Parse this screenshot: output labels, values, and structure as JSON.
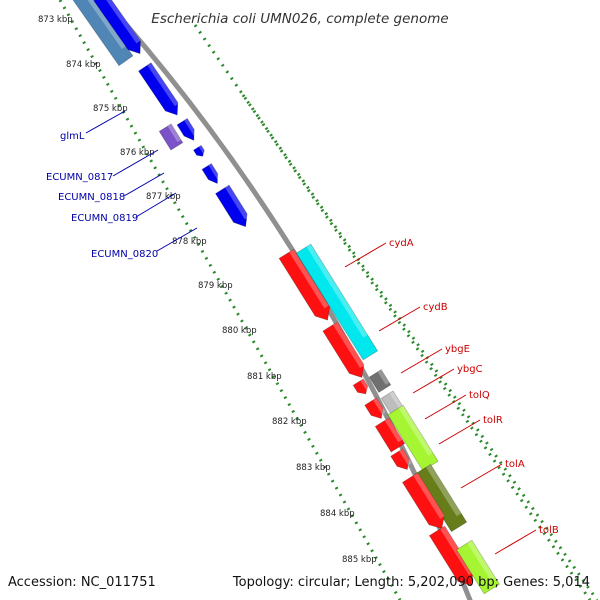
{
  "title": "Escherichia coli UMN026, complete genome",
  "footer": {
    "accession": "Accession: NC_011751",
    "stats": "Topology: circular; Length: 5,202,090 bp; Genes: 5,014"
  },
  "colors": {
    "backbone": "#909090",
    "tick_green": "#2a8a2a",
    "label_blue": "#0000aa",
    "label_red": "#cc0000"
  },
  "kbp_labels": [
    "873 kbp",
    "874 kbp",
    "875 kbp",
    "876 kbp",
    "877 kbp",
    "878 kbp",
    "879 kbp",
    "880 kbp",
    "881 kbp",
    "882 kbp",
    "883 kbp",
    "884 kbp",
    "885 kbp"
  ],
  "genes_left": [
    {
      "name": "glmL"
    },
    {
      "name": "ECUMN_0817"
    },
    {
      "name": "ECUMN_0818"
    },
    {
      "name": "ECUMN_0819"
    },
    {
      "name": "ECUMN_0820"
    }
  ],
  "genes_right": [
    {
      "name": "cydA"
    },
    {
      "name": "cydB"
    },
    {
      "name": "ybgE"
    },
    {
      "name": "ybgC"
    },
    {
      "name": "tolQ"
    },
    {
      "name": "tolR"
    },
    {
      "name": "tolA"
    },
    {
      "name": "tolB"
    }
  ]
}
